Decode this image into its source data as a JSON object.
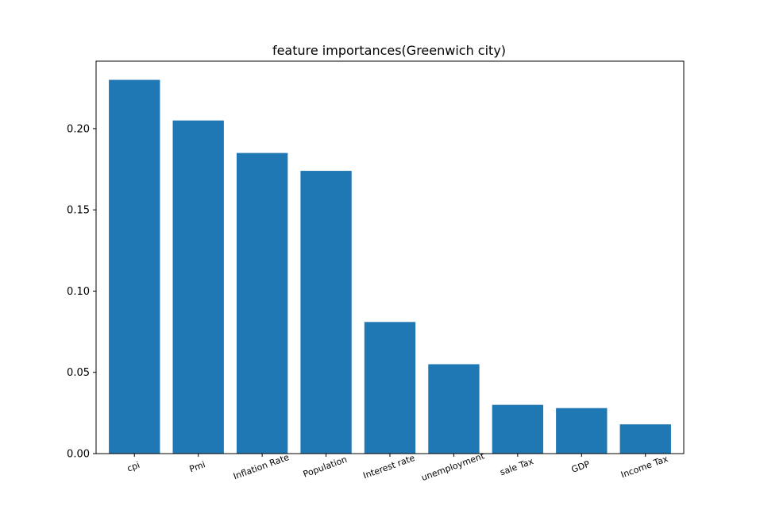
{
  "chart_data": {
    "type": "bar",
    "title": "feature importances(Greenwich city)",
    "xlabel": "",
    "ylabel": "",
    "categories": [
      "cpi",
      "Pmi",
      "Inflation Rate",
      "Population",
      "Interest rate",
      "unemployment",
      "sale Tax",
      "GDP",
      "Income Tax"
    ],
    "values": [
      0.23,
      0.205,
      0.185,
      0.174,
      0.081,
      0.055,
      0.03,
      0.028,
      0.018
    ],
    "ylim": [
      0,
      0.2415
    ],
    "yticks": [
      0.0,
      0.05,
      0.1,
      0.15,
      0.2
    ],
    "ytick_labels": [
      "0.00",
      "0.05",
      "0.10",
      "0.15",
      "0.20"
    ],
    "xtick_rotation_deg": -20,
    "bar_color": "#1f77b4",
    "grid": false,
    "legend": "none"
  }
}
